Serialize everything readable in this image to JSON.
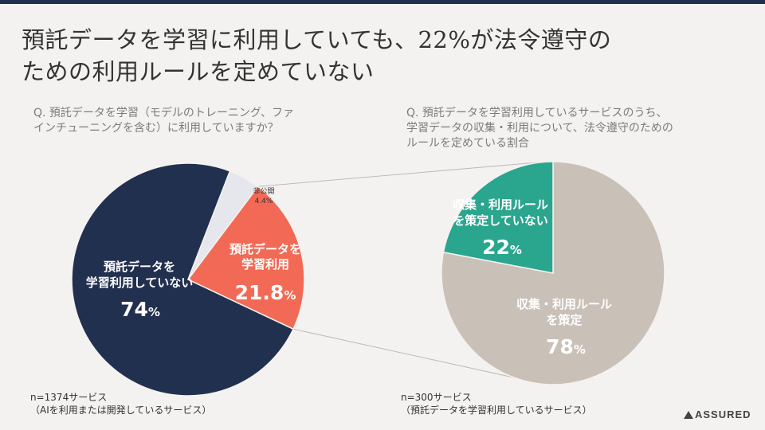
{
  "title": {
    "line1": "預託データを学習に利用していても、22%が法令遵守の",
    "line2": "ための利用ルールを定めていない"
  },
  "colors": {
    "navy": "#22304f",
    "coral": "#f26a55",
    "lightgray": "#e6e7ec",
    "teal": "#2aa58e",
    "beige": "#c9c0b8"
  },
  "chart_data": [
    {
      "type": "pie",
      "question_lines": [
        "Q. 預託データを学習（モデルのトレーニング、ファ",
        "インチューニングを含む）に利用していますか？"
      ],
      "slices": [
        {
          "name": "not_using",
          "label_lines": [
            "預託データを",
            "学習利用していない"
          ],
          "value": 74,
          "display": "74",
          "unit": "%"
        },
        {
          "name": "using",
          "label_lines": [
            "預託データを",
            "学習利用"
          ],
          "value": 21.8,
          "display": "21.8",
          "unit": "%"
        },
        {
          "name": "undisclosed",
          "label_lines": [
            "非公開",
            "4.4%"
          ],
          "value": 4.4
        }
      ],
      "sample_lines": [
        "n=1374サービス",
        "（AIを利用または開発しているサービス）"
      ]
    },
    {
      "type": "pie",
      "question_lines": [
        "Q. 預託データを学習利用しているサービスのうち、",
        "学習データの収集・利用について、法令遵守のための",
        "ルールを定めている割合"
      ],
      "slices": [
        {
          "name": "no_rules",
          "label_lines": [
            "収集・利用ルール",
            "を策定していない"
          ],
          "value": 22,
          "display": "22",
          "unit": "%"
        },
        {
          "name": "rules",
          "label_lines": [
            "収集・利用ルール",
            "を策定"
          ],
          "value": 78,
          "display": "78",
          "unit": "%"
        }
      ],
      "sample_lines": [
        "n=300サービス",
        "（預託データを学習利用しているサービス）"
      ]
    }
  ],
  "brand": {
    "name": "ASSURED"
  }
}
